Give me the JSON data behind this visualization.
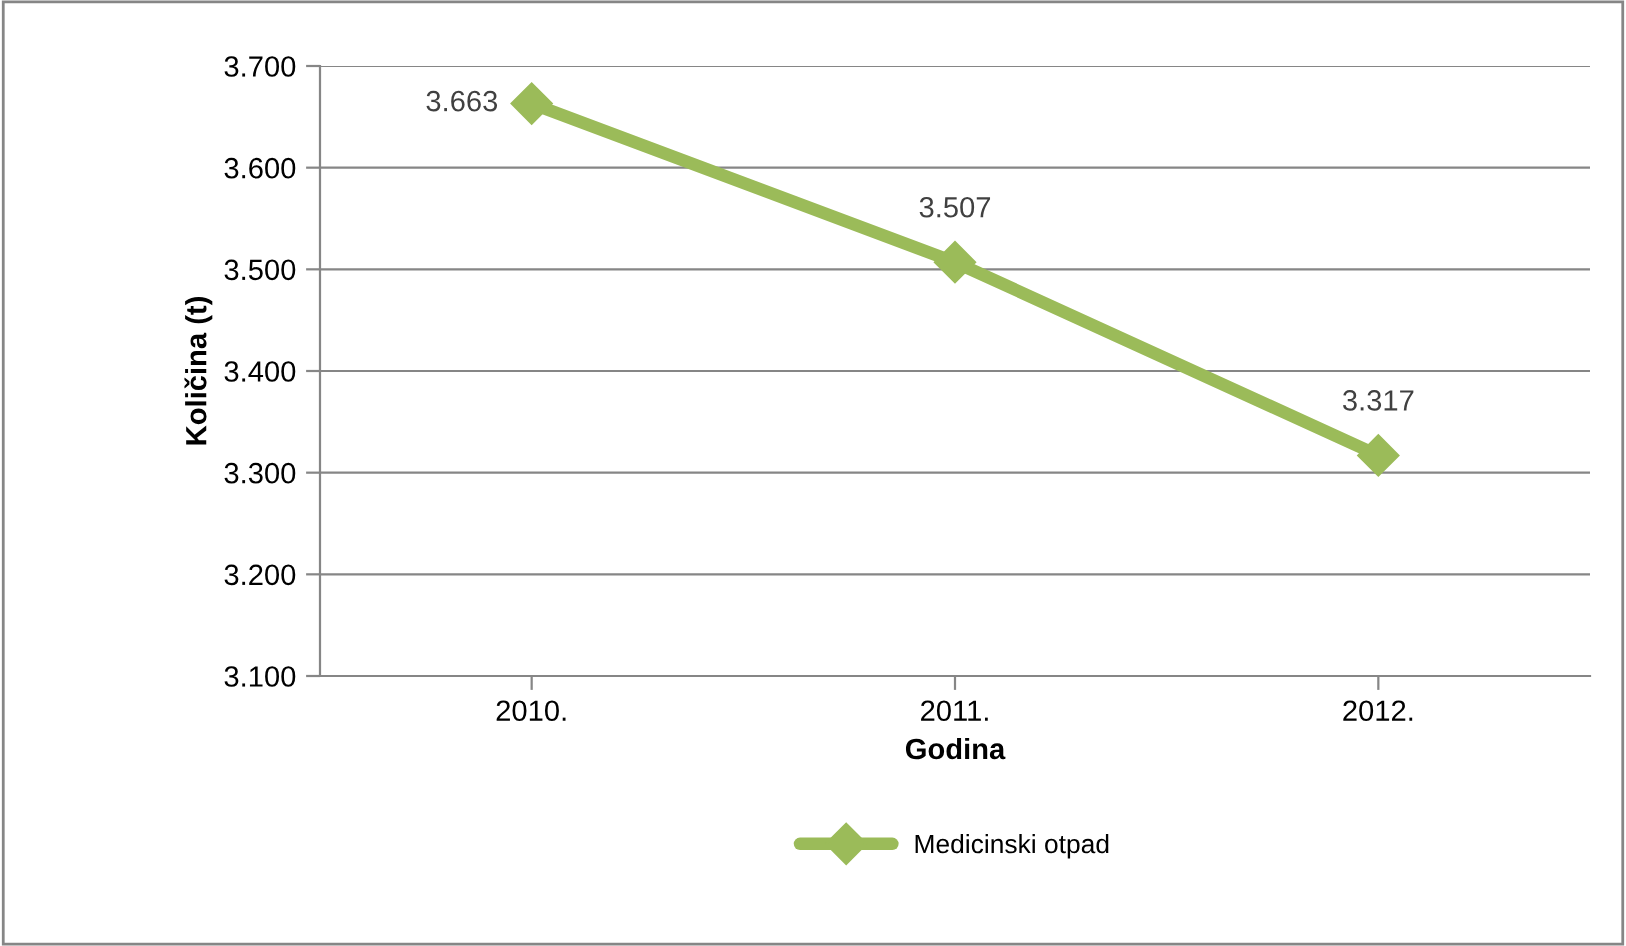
{
  "chart_data": {
    "type": "line",
    "xlabel": "Godina",
    "ylabel": "Količina (t)",
    "categories": [
      "2010.",
      "2011.",
      "2012."
    ],
    "series": [
      {
        "name": "Medicinski otpad",
        "color": "#9bbb59",
        "values": [
          3.663,
          3.507,
          3.317
        ]
      }
    ],
    "ylim": [
      3.1,
      3.7
    ],
    "yticks": [
      {
        "value": 3.1,
        "label": "3.100"
      },
      {
        "value": 3.2,
        "label": "3.200"
      },
      {
        "value": 3.3,
        "label": "3.300"
      },
      {
        "value": 3.4,
        "label": "3.400"
      },
      {
        "value": 3.5,
        "label": "3.500"
      },
      {
        "value": 3.6,
        "label": "3.600"
      },
      {
        "value": 3.7,
        "label": "3.700"
      }
    ],
    "grid": "y",
    "legend": "bottom",
    "marker": "diamond",
    "data_labels": true,
    "line_style": "solid"
  }
}
